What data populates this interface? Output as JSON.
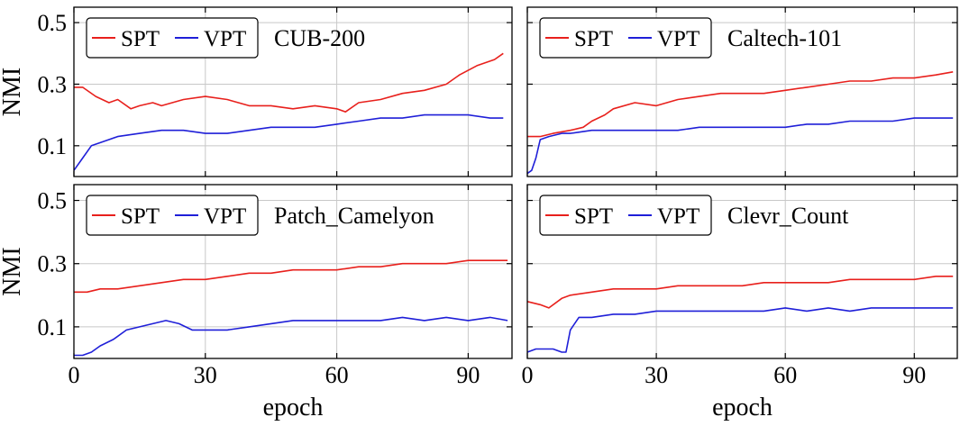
{
  "chart_data": [
    {
      "type": "line",
      "title": "CUB-200",
      "xlabel": "",
      "ylabel": "NMI",
      "xlim": [
        0,
        100
      ],
      "ylim": [
        0,
        0.55
      ],
      "xticks": [
        0,
        30,
        60,
        90
      ],
      "yticks": [
        0.1,
        0.3,
        0.5
      ],
      "ytick_labels": [
        "0.1",
        "0.3",
        "0.5"
      ],
      "show_xtick_labels": false,
      "show_ytick_labels": true,
      "grid": true,
      "legend_position": "top-left",
      "series": [
        {
          "name": "SPT",
          "color": "#e8201c",
          "x": [
            0,
            2,
            5,
            8,
            10,
            13,
            15,
            18,
            20,
            25,
            30,
            35,
            40,
            45,
            50,
            55,
            60,
            62,
            65,
            70,
            75,
            80,
            85,
            88,
            92,
            96,
            98
          ],
          "y": [
            0.29,
            0.29,
            0.26,
            0.24,
            0.25,
            0.22,
            0.23,
            0.24,
            0.23,
            0.25,
            0.26,
            0.25,
            0.23,
            0.23,
            0.22,
            0.23,
            0.22,
            0.21,
            0.24,
            0.25,
            0.27,
            0.28,
            0.3,
            0.33,
            0.36,
            0.38,
            0.4
          ]
        },
        {
          "name": "VPT",
          "color": "#1f1fd8",
          "x": [
            0,
            2,
            4,
            6,
            8,
            10,
            15,
            20,
            25,
            30,
            35,
            40,
            45,
            50,
            55,
            60,
            65,
            70,
            75,
            80,
            85,
            90,
            95,
            98
          ],
          "y": [
            0.02,
            0.06,
            0.1,
            0.11,
            0.12,
            0.13,
            0.14,
            0.15,
            0.15,
            0.14,
            0.14,
            0.15,
            0.16,
            0.16,
            0.16,
            0.17,
            0.18,
            0.19,
            0.19,
            0.2,
            0.2,
            0.2,
            0.19,
            0.19
          ]
        }
      ]
    },
    {
      "type": "line",
      "title": "Caltech-101",
      "xlabel": "",
      "ylabel": "",
      "xlim": [
        0,
        100
      ],
      "ylim": [
        0,
        0.55
      ],
      "xticks": [
        0,
        30,
        60,
        90
      ],
      "yticks": [
        0.1,
        0.3,
        0.5
      ],
      "ytick_labels": [
        "0.1",
        "0.3",
        "0.5"
      ],
      "show_xtick_labels": false,
      "show_ytick_labels": false,
      "grid": true,
      "legend_position": "top-left",
      "series": [
        {
          "name": "SPT",
          "color": "#e8201c",
          "x": [
            0,
            3,
            6,
            10,
            13,
            15,
            18,
            20,
            25,
            30,
            35,
            40,
            45,
            50,
            55,
            60,
            65,
            70,
            75,
            80,
            85,
            90,
            95,
            99
          ],
          "y": [
            0.13,
            0.13,
            0.14,
            0.15,
            0.16,
            0.18,
            0.2,
            0.22,
            0.24,
            0.23,
            0.25,
            0.26,
            0.27,
            0.27,
            0.27,
            0.28,
            0.29,
            0.3,
            0.31,
            0.31,
            0.32,
            0.32,
            0.33,
            0.34
          ]
        },
        {
          "name": "VPT",
          "color": "#1f1fd8",
          "x": [
            0,
            1,
            2,
            3,
            5,
            8,
            10,
            15,
            20,
            25,
            30,
            35,
            40,
            45,
            50,
            55,
            60,
            65,
            70,
            75,
            80,
            85,
            90,
            95,
            99
          ],
          "y": [
            0.01,
            0.02,
            0.06,
            0.12,
            0.13,
            0.14,
            0.14,
            0.15,
            0.15,
            0.15,
            0.15,
            0.15,
            0.16,
            0.16,
            0.16,
            0.16,
            0.16,
            0.17,
            0.17,
            0.18,
            0.18,
            0.18,
            0.19,
            0.19,
            0.19
          ]
        }
      ]
    },
    {
      "type": "line",
      "title": "Patch_Camelyon",
      "xlabel": "epoch",
      "ylabel": "NMI",
      "xlim": [
        0,
        100
      ],
      "ylim": [
        0,
        0.55
      ],
      "xticks": [
        0,
        30,
        60,
        90
      ],
      "yticks": [
        0.1,
        0.3,
        0.5
      ],
      "ytick_labels": [
        "0.1",
        "0.3",
        "0.5"
      ],
      "show_xtick_labels": true,
      "show_ytick_labels": true,
      "grid": true,
      "legend_position": "top-left",
      "series": [
        {
          "name": "SPT",
          "color": "#e8201c",
          "x": [
            0,
            3,
            6,
            10,
            15,
            20,
            25,
            30,
            35,
            40,
            45,
            50,
            55,
            60,
            65,
            70,
            75,
            80,
            85,
            90,
            95,
            99
          ],
          "y": [
            0.21,
            0.21,
            0.22,
            0.22,
            0.23,
            0.24,
            0.25,
            0.25,
            0.26,
            0.27,
            0.27,
            0.28,
            0.28,
            0.28,
            0.29,
            0.29,
            0.3,
            0.3,
            0.3,
            0.31,
            0.31,
            0.31
          ]
        },
        {
          "name": "VPT",
          "color": "#1f1fd8",
          "x": [
            0,
            2,
            4,
            6,
            9,
            12,
            15,
            18,
            21,
            24,
            27,
            30,
            35,
            40,
            45,
            50,
            55,
            60,
            65,
            70,
            75,
            80,
            85,
            90,
            95,
            99
          ],
          "y": [
            0.01,
            0.01,
            0.02,
            0.04,
            0.06,
            0.09,
            0.1,
            0.11,
            0.12,
            0.11,
            0.09,
            0.09,
            0.09,
            0.1,
            0.11,
            0.12,
            0.12,
            0.12,
            0.12,
            0.12,
            0.13,
            0.12,
            0.13,
            0.12,
            0.13,
            0.12
          ]
        }
      ]
    },
    {
      "type": "line",
      "title": "Clevr_Count",
      "xlabel": "epoch",
      "ylabel": "",
      "xlim": [
        0,
        100
      ],
      "ylim": [
        0,
        0.55
      ],
      "xticks": [
        0,
        30,
        60,
        90
      ],
      "yticks": [
        0.1,
        0.3,
        0.5
      ],
      "ytick_labels": [
        "0.1",
        "0.3",
        "0.5"
      ],
      "show_xtick_labels": true,
      "show_ytick_labels": false,
      "grid": true,
      "legend_position": "top-left",
      "series": [
        {
          "name": "SPT",
          "color": "#e8201c",
          "x": [
            0,
            3,
            5,
            8,
            10,
            15,
            20,
            25,
            30,
            35,
            40,
            45,
            50,
            55,
            60,
            65,
            70,
            75,
            80,
            85,
            90,
            95,
            99
          ],
          "y": [
            0.18,
            0.17,
            0.16,
            0.19,
            0.2,
            0.21,
            0.22,
            0.22,
            0.22,
            0.23,
            0.23,
            0.23,
            0.23,
            0.24,
            0.24,
            0.24,
            0.24,
            0.25,
            0.25,
            0.25,
            0.25,
            0.26,
            0.26
          ]
        },
        {
          "name": "VPT",
          "color": "#1f1fd8",
          "x": [
            0,
            2,
            4,
            6,
            8,
            9,
            10,
            12,
            15,
            20,
            25,
            30,
            35,
            40,
            45,
            50,
            55,
            60,
            65,
            70,
            75,
            80,
            85,
            90,
            95,
            99
          ],
          "y": [
            0.02,
            0.03,
            0.03,
            0.03,
            0.02,
            0.02,
            0.09,
            0.13,
            0.13,
            0.14,
            0.14,
            0.15,
            0.15,
            0.15,
            0.15,
            0.15,
            0.15,
            0.16,
            0.15,
            0.16,
            0.15,
            0.16,
            0.16,
            0.16,
            0.16,
            0.16
          ]
        }
      ]
    }
  ]
}
